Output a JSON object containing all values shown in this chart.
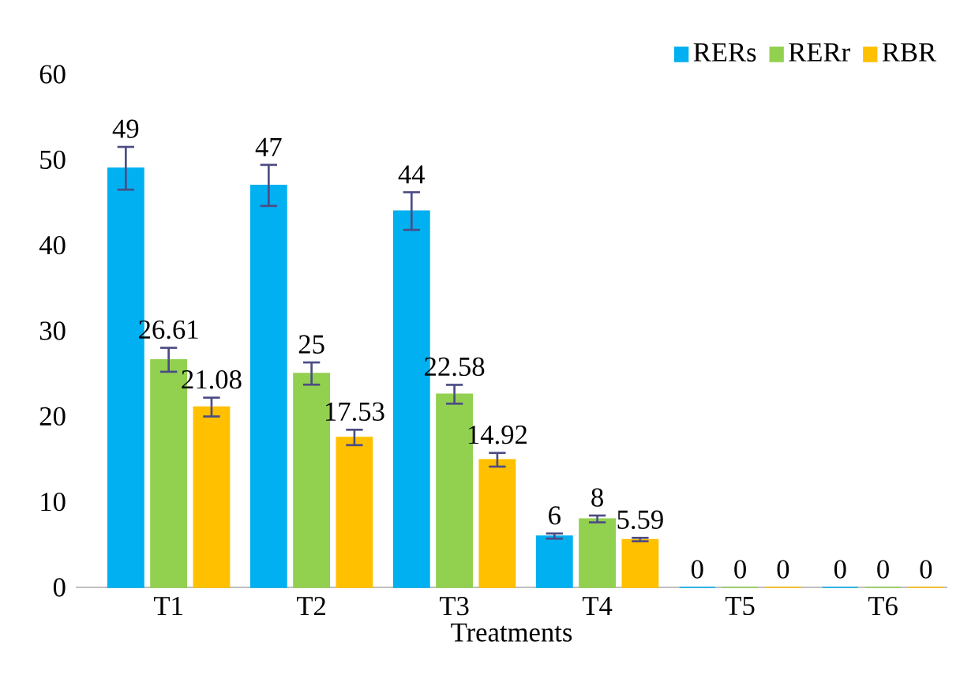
{
  "chart_data": {
    "type": "bar",
    "xlabel": "Treatments",
    "categories": [
      "T1",
      "T2",
      "T3",
      "T4",
      "T5",
      "T6"
    ],
    "series": [
      {
        "name": "RERs",
        "color": "#00b0f0",
        "values": [
          49,
          47,
          44,
          6,
          0,
          0
        ],
        "errors": [
          2.5,
          2.4,
          2.2,
          0.3,
          null,
          null
        ]
      },
      {
        "name": "RERr",
        "color": "#92d050",
        "values": [
          26.61,
          25,
          22.58,
          8,
          0,
          0
        ],
        "errors": [
          1.4,
          1.3,
          1.1,
          0.4,
          null,
          null
        ]
      },
      {
        "name": "RBR",
        "color": "#ffc000",
        "values": [
          21.08,
          17.53,
          14.92,
          5.59,
          0,
          0
        ],
        "errors": [
          1.1,
          0.9,
          0.8,
          0.2,
          null,
          null
        ]
      }
    ],
    "ylim": [
      0,
      60
    ],
    "yticks": [
      0,
      10,
      20,
      30,
      40,
      50,
      60
    ],
    "data_labels": true,
    "legend": "top right",
    "grid": false
  }
}
